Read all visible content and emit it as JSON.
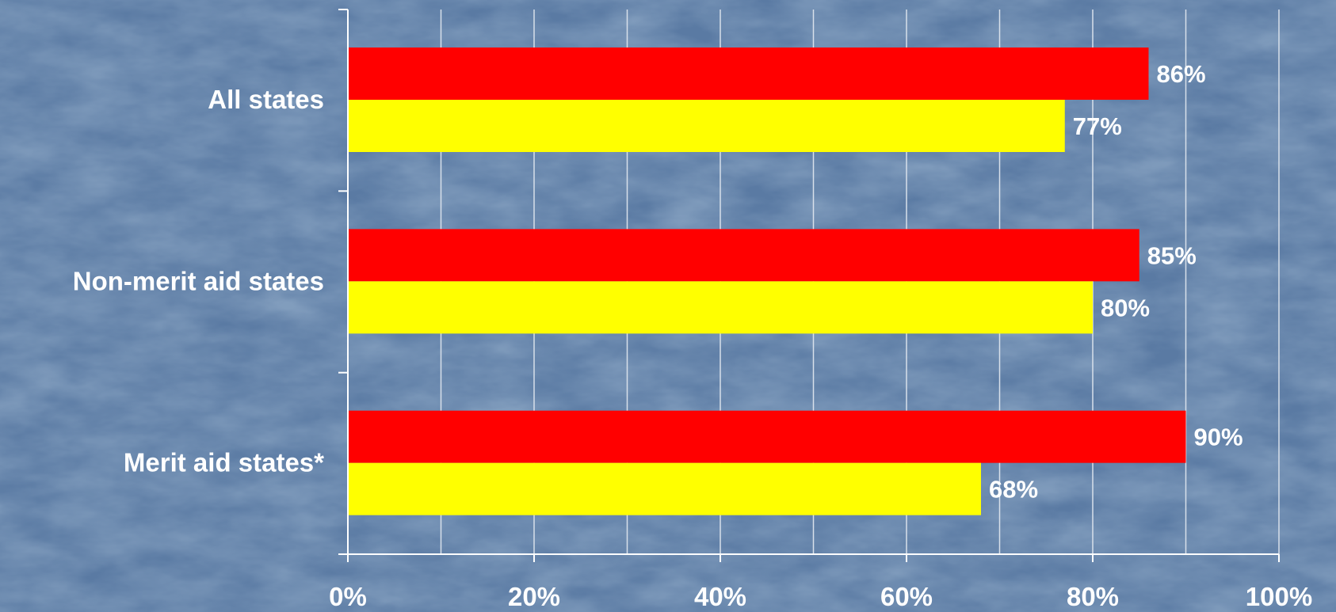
{
  "colors": {
    "background": "#5a7aa3",
    "gridline": "#d8e0ea",
    "axis": "#ffffff",
    "text": "#ffffff"
  },
  "chart_data": {
    "type": "bar",
    "orientation": "horizontal",
    "categories": [
      "All states",
      "Non-merit aid states",
      "Merit aid states*"
    ],
    "series": [
      {
        "color": "#ff0000",
        "values": [
          86,
          85,
          90
        ],
        "labels": [
          "86%",
          "85%",
          "90%"
        ]
      },
      {
        "color": "#ffff00",
        "values": [
          77,
          80,
          68
        ],
        "labels": [
          "77%",
          "80%",
          "68%"
        ]
      }
    ],
    "xlim": [
      0,
      100
    ],
    "x_ticks": [
      "0%",
      "20%",
      "40%",
      "60%",
      "80%",
      "100%"
    ],
    "grid": true,
    "legend": "none"
  }
}
